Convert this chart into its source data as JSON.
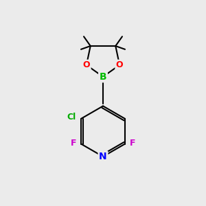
{
  "bg_color": "#ebebeb",
  "atom_colors": {
    "N": "#0000ff",
    "O": "#ff0000",
    "B": "#00bb00",
    "F": "#cc00cc",
    "Cl": "#00aa00"
  },
  "bond_color": "#000000",
  "bond_width": 1.5,
  "font_size": 10,
  "figsize": [
    3.0,
    3.0
  ],
  "dpi": 100
}
